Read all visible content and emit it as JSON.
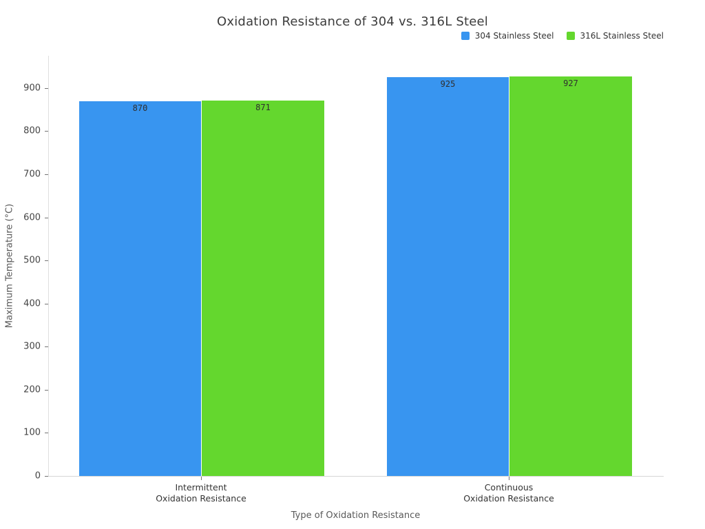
{
  "figure": {
    "title": "Oxidation Resistance of 304 vs. 316L Steel"
  },
  "legend": {
    "items": [
      {
        "label": "304 Stainless Steel",
        "color": "#3895F0"
      },
      {
        "label": "316L Stainless Steel",
        "color": "#64D72E"
      }
    ]
  },
  "chart_data": {
    "type": "bar",
    "title": "Oxidation Resistance of 304 vs. 316L Steel",
    "xlabel": "Type of Oxidation Resistance",
    "ylabel": "Maximum Temperature (°C)",
    "categories": [
      "Intermittent\nOxidation Resistance",
      "Continuous\nOxidation Resistance"
    ],
    "series": [
      {
        "name": "304 Stainless Steel",
        "color": "#3895F0",
        "values": [
          870,
          925
        ]
      },
      {
        "name": "316L Stainless Steel",
        "color": "#64D72E",
        "values": [
          871,
          927
        ]
      }
    ],
    "yticks": [
      0,
      100,
      200,
      300,
      400,
      500,
      600,
      700,
      800,
      900
    ],
    "ylim": [
      0,
      975
    ],
    "grid": false,
    "legend_position": "top-right",
    "bar_value_labels": true
  }
}
